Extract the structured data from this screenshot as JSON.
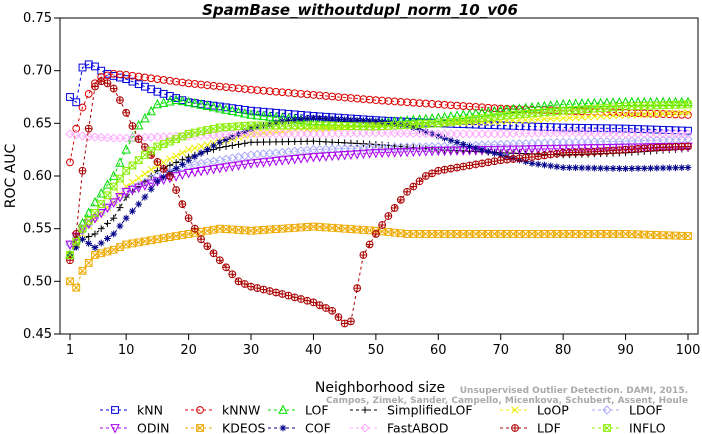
{
  "chart_data": {
    "type": "line",
    "title": "SpamBase_withoutdupl_norm_10_v06",
    "xlabel": "Neighborhood size",
    "ylabel": "ROC AUC",
    "xlim": [
      1,
      100
    ],
    "ylim": [
      0.45,
      0.75
    ],
    "xticks": [
      1,
      10,
      20,
      30,
      40,
      50,
      60,
      70,
      80,
      90,
      100
    ],
    "yticks": [
      0.45,
      0.5,
      0.55,
      0.6,
      0.65,
      0.7,
      0.75
    ],
    "xtick_labels": [
      "1",
      "10",
      "20",
      "30",
      "40",
      "50",
      "60",
      "70",
      "80",
      "90",
      "100"
    ],
    "ytick_labels": [
      "0.45",
      "0.50",
      "0.55",
      "0.60",
      "0.65",
      "0.70",
      "0.75"
    ],
    "grid": false,
    "legend_position": "bottom",
    "series": [
      {
        "name": "kNN",
        "color": "#0000dd",
        "marker": "square",
        "points": [
          [
            1,
            0.675
          ],
          [
            2,
            0.67
          ],
          [
            3,
            0.703
          ],
          [
            4,
            0.706
          ],
          [
            5,
            0.704
          ],
          [
            6,
            0.7
          ],
          [
            7,
            0.697
          ],
          [
            8,
            0.695
          ],
          [
            10,
            0.692
          ],
          [
            15,
            0.68
          ],
          [
            20,
            0.67
          ],
          [
            30,
            0.662
          ],
          [
            40,
            0.657
          ],
          [
            50,
            0.653
          ],
          [
            60,
            0.65
          ],
          [
            70,
            0.648
          ],
          [
            80,
            0.646
          ],
          [
            90,
            0.645
          ],
          [
            100,
            0.643
          ]
        ]
      },
      {
        "name": "kNNW",
        "color": "#dd0000",
        "marker": "circle",
        "points": [
          [
            1,
            0.613
          ],
          [
            2,
            0.645
          ],
          [
            3,
            0.665
          ],
          [
            4,
            0.678
          ],
          [
            5,
            0.688
          ],
          [
            6,
            0.694
          ],
          [
            8,
            0.697
          ],
          [
            10,
            0.696
          ],
          [
            15,
            0.692
          ],
          [
            20,
            0.688
          ],
          [
            30,
            0.682
          ],
          [
            40,
            0.677
          ],
          [
            50,
            0.672
          ],
          [
            60,
            0.668
          ],
          [
            70,
            0.664
          ],
          [
            80,
            0.662
          ],
          [
            90,
            0.66
          ],
          [
            100,
            0.658
          ]
        ]
      },
      {
        "name": "LOF",
        "color": "#00dd00",
        "marker": "triangle-up",
        "points": [
          [
            1,
            0.525
          ],
          [
            3,
            0.555
          ],
          [
            5,
            0.575
          ],
          [
            8,
            0.6
          ],
          [
            10,
            0.625
          ],
          [
            12,
            0.648
          ],
          [
            15,
            0.668
          ],
          [
            18,
            0.672
          ],
          [
            20,
            0.67
          ],
          [
            25,
            0.664
          ],
          [
            30,
            0.658
          ],
          [
            40,
            0.652
          ],
          [
            50,
            0.65
          ],
          [
            60,
            0.655
          ],
          [
            70,
            0.662
          ],
          [
            80,
            0.668
          ],
          [
            90,
            0.67
          ],
          [
            100,
            0.67
          ]
        ]
      },
      {
        "name": "SimplifiedLOF",
        "color": "#000000",
        "marker": "plus",
        "points": [
          [
            1,
            0.525
          ],
          [
            3,
            0.54
          ],
          [
            5,
            0.545
          ],
          [
            8,
            0.56
          ],
          [
            10,
            0.58
          ],
          [
            15,
            0.605
          ],
          [
            20,
            0.618
          ],
          [
            25,
            0.627
          ],
          [
            30,
            0.632
          ],
          [
            40,
            0.633
          ],
          [
            50,
            0.63
          ],
          [
            60,
            0.625
          ],
          [
            70,
            0.622
          ],
          [
            80,
            0.62
          ],
          [
            90,
            0.622
          ],
          [
            100,
            0.626
          ]
        ]
      },
      {
        "name": "LoOP",
        "color": "#eeee00",
        "marker": "x",
        "points": [
          [
            1,
            0.525
          ],
          [
            3,
            0.545
          ],
          [
            5,
            0.56
          ],
          [
            8,
            0.575
          ],
          [
            10,
            0.59
          ],
          [
            15,
            0.61
          ],
          [
            20,
            0.625
          ],
          [
            30,
            0.64
          ],
          [
            40,
            0.645
          ],
          [
            50,
            0.648
          ],
          [
            60,
            0.65
          ],
          [
            70,
            0.652
          ],
          [
            80,
            0.655
          ],
          [
            90,
            0.658
          ],
          [
            100,
            0.66
          ]
        ]
      },
      {
        "name": "LDOF",
        "color": "#aaaaff",
        "marker": "diamond",
        "points": [
          [
            1,
            0.535
          ],
          [
            3,
            0.548
          ],
          [
            5,
            0.56
          ],
          [
            8,
            0.575
          ],
          [
            10,
            0.585
          ],
          [
            15,
            0.6
          ],
          [
            20,
            0.61
          ],
          [
            30,
            0.62
          ],
          [
            40,
            0.625
          ],
          [
            50,
            0.627
          ],
          [
            60,
            0.628
          ],
          [
            70,
            0.63
          ],
          [
            80,
            0.632
          ],
          [
            90,
            0.633
          ],
          [
            100,
            0.635
          ]
        ]
      },
      {
        "name": "ODIN",
        "color": "#aa00ee",
        "marker": "triangle-down",
        "points": [
          [
            1,
            0.535
          ],
          [
            3,
            0.55
          ],
          [
            5,
            0.56
          ],
          [
            8,
            0.575
          ],
          [
            10,
            0.585
          ],
          [
            15,
            0.595
          ],
          [
            20,
            0.603
          ],
          [
            30,
            0.612
          ],
          [
            40,
            0.618
          ],
          [
            50,
            0.622
          ],
          [
            60,
            0.624
          ],
          [
            70,
            0.625
          ],
          [
            80,
            0.626
          ],
          [
            90,
            0.627
          ],
          [
            100,
            0.628
          ]
        ]
      },
      {
        "name": "KDEOS",
        "color": "#eeaa00",
        "marker": "square-x",
        "points": [
          [
            1,
            0.5
          ],
          [
            2,
            0.494
          ],
          [
            3,
            0.51
          ],
          [
            5,
            0.525
          ],
          [
            8,
            0.53
          ],
          [
            10,
            0.535
          ],
          [
            15,
            0.54
          ],
          [
            20,
            0.545
          ],
          [
            25,
            0.55
          ],
          [
            30,
            0.548
          ],
          [
            40,
            0.552
          ],
          [
            50,
            0.548
          ],
          [
            55,
            0.545
          ],
          [
            60,
            0.545
          ],
          [
            70,
            0.545
          ],
          [
            80,
            0.545
          ],
          [
            90,
            0.545
          ],
          [
            100,
            0.543
          ]
        ]
      },
      {
        "name": "COF",
        "color": "#000088",
        "marker": "asterisk",
        "points": [
          [
            1,
            0.525
          ],
          [
            3,
            0.54
          ],
          [
            5,
            0.532
          ],
          [
            8,
            0.545
          ],
          [
            10,
            0.56
          ],
          [
            13,
            0.58
          ],
          [
            15,
            0.595
          ],
          [
            20,
            0.615
          ],
          [
            25,
            0.632
          ],
          [
            30,
            0.645
          ],
          [
            35,
            0.652
          ],
          [
            40,
            0.655
          ],
          [
            50,
            0.652
          ],
          [
            55,
            0.648
          ],
          [
            60,
            0.638
          ],
          [
            65,
            0.628
          ],
          [
            70,
            0.62
          ],
          [
            75,
            0.612
          ],
          [
            80,
            0.608
          ],
          [
            90,
            0.607
          ],
          [
            100,
            0.608
          ]
        ]
      },
      {
        "name": "FastABOD",
        "color": "#ffaaff",
        "marker": "diamond",
        "points": [
          [
            1,
            0.64
          ],
          [
            3,
            0.638
          ],
          [
            5,
            0.637
          ],
          [
            8,
            0.636
          ],
          [
            10,
            0.636
          ],
          [
            20,
            0.638
          ],
          [
            30,
            0.64
          ],
          [
            40,
            0.64
          ],
          [
            50,
            0.641
          ],
          [
            60,
            0.64
          ],
          [
            70,
            0.64
          ],
          [
            80,
            0.641
          ],
          [
            90,
            0.64
          ],
          [
            100,
            0.64
          ]
        ]
      },
      {
        "name": "LDF",
        "color": "#aa0000",
        "marker": "circle-plus",
        "points": [
          [
            1,
            0.52
          ],
          [
            2,
            0.545
          ],
          [
            3,
            0.605
          ],
          [
            4,
            0.645
          ],
          [
            5,
            0.685
          ],
          [
            6,
            0.69
          ],
          [
            7,
            0.688
          ],
          [
            8,
            0.683
          ],
          [
            9,
            0.672
          ],
          [
            10,
            0.66
          ],
          [
            12,
            0.635
          ],
          [
            14,
            0.62
          ],
          [
            17,
            0.6
          ],
          [
            20,
            0.56
          ],
          [
            22,
            0.54
          ],
          [
            25,
            0.52
          ],
          [
            28,
            0.5
          ],
          [
            30,
            0.495
          ],
          [
            35,
            0.488
          ],
          [
            40,
            0.48
          ],
          [
            43,
            0.472
          ],
          [
            45,
            0.46
          ],
          [
            46,
            0.462
          ],
          [
            48,
            0.525
          ],
          [
            50,
            0.545
          ],
          [
            52,
            0.562
          ],
          [
            55,
            0.585
          ],
          [
            58,
            0.6
          ],
          [
            60,
            0.605
          ],
          [
            65,
            0.61
          ],
          [
            70,
            0.615
          ],
          [
            75,
            0.618
          ],
          [
            80,
            0.622
          ],
          [
            85,
            0.623
          ],
          [
            90,
            0.625
          ],
          [
            95,
            0.627
          ],
          [
            100,
            0.628
          ]
        ]
      },
      {
        "name": "INFLO",
        "color": "#88ee00",
        "marker": "square-x",
        "points": [
          [
            1,
            0.525
          ],
          [
            3,
            0.55
          ],
          [
            5,
            0.565
          ],
          [
            8,
            0.59
          ],
          [
            10,
            0.605
          ],
          [
            13,
            0.62
          ],
          [
            15,
            0.628
          ],
          [
            18,
            0.635
          ],
          [
            20,
            0.64
          ],
          [
            25,
            0.646
          ],
          [
            30,
            0.648
          ],
          [
            40,
            0.648
          ],
          [
            50,
            0.647
          ],
          [
            60,
            0.65
          ],
          [
            70,
            0.657
          ],
          [
            80,
            0.662
          ],
          [
            90,
            0.666
          ],
          [
            100,
            0.668
          ]
        ]
      }
    ],
    "legend_rows": [
      [
        "kNN",
        "kNNW",
        "LOF",
        "SimplifiedLOF",
        "LoOP",
        "LDOF"
      ],
      [
        "ODIN",
        "KDEOS",
        "COF",
        "FastABOD",
        "LDF",
        "INFLO"
      ]
    ]
  },
  "credit": {
    "line1": "Unsupervised Outlier Detection. DAMI, 2015.",
    "line2": "Campos, Zimek, Sander, Campello, Micenkova, Schubert, Assent, Houle"
  }
}
